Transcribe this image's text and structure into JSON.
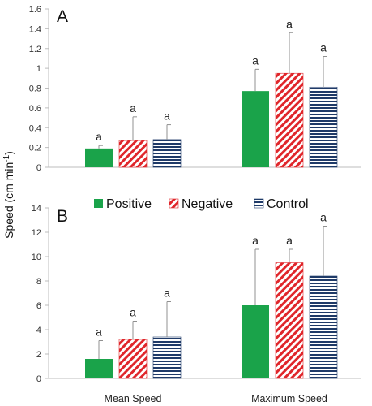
{
  "chart_data": [
    {
      "type": "bar",
      "panel_label": "A",
      "categories": [
        "Mean Speed",
        "Maximum Speed"
      ],
      "series": [
        {
          "name": "Positive",
          "values": [
            0.19,
            0.77
          ],
          "errors": [
            0.03,
            0.22
          ],
          "labels": [
            "a",
            "a"
          ]
        },
        {
          "name": "Negative",
          "values": [
            0.27,
            0.95
          ],
          "errors": [
            0.24,
            0.41
          ],
          "labels": [
            "a",
            "a"
          ]
        },
        {
          "name": "Control",
          "values": [
            0.28,
            0.81
          ],
          "errors": [
            0.15,
            0.31
          ],
          "labels": [
            "a",
            "a"
          ]
        }
      ],
      "ylim": [
        0,
        1.6
      ],
      "yticks": [
        0,
        0.2,
        0.4,
        0.6,
        0.8,
        1,
        1.2,
        1.4,
        1.6
      ],
      "ytick_labels": [
        "0",
        "0.2",
        "0.4",
        "0.6",
        "0.8",
        "1",
        "1.2",
        "1.4",
        "1.6"
      ],
      "grid": false
    },
    {
      "type": "bar",
      "panel_label": "B",
      "categories": [
        "Mean Speed",
        "Maximum Speed"
      ],
      "series": [
        {
          "name": "Positive",
          "values": [
            1.6,
            6.0
          ],
          "errors": [
            1.5,
            4.6
          ],
          "labels": [
            "a",
            "a"
          ]
        },
        {
          "name": "Negative",
          "values": [
            3.2,
            9.5
          ],
          "errors": [
            1.5,
            1.1
          ],
          "labels": [
            "a",
            "a"
          ]
        },
        {
          "name": "Control",
          "values": [
            3.4,
            8.4
          ],
          "errors": [
            2.9,
            4.1
          ],
          "labels": [
            "a",
            "a"
          ]
        }
      ],
      "ylim": [
        0,
        14
      ],
      "yticks": [
        0,
        2,
        4,
        6,
        8,
        10,
        12,
        14
      ],
      "ytick_labels": [
        "0",
        "2",
        "4",
        "6",
        "8",
        "10",
        "12",
        "14"
      ],
      "grid": false
    }
  ],
  "y_axis_label": {
    "main": "Speed (cm min",
    "sup": "-1",
    "close": ")"
  },
  "legend": {
    "placement": "between panels",
    "entries": [
      {
        "label": "Positive",
        "pattern": "solid",
        "color": "#1aa34a"
      },
      {
        "label": "Negative",
        "pattern": "diagonal-hatch",
        "color": "#e0262b"
      },
      {
        "label": "Control",
        "pattern": "horizontal-stripes",
        "color": "#1f3a68"
      }
    ]
  },
  "colors": {
    "positive": "#1aa34a",
    "negative": "#e0262b",
    "control": "#1f3a68",
    "axis": "#bdbdbd",
    "errorbar": "#909090"
  }
}
